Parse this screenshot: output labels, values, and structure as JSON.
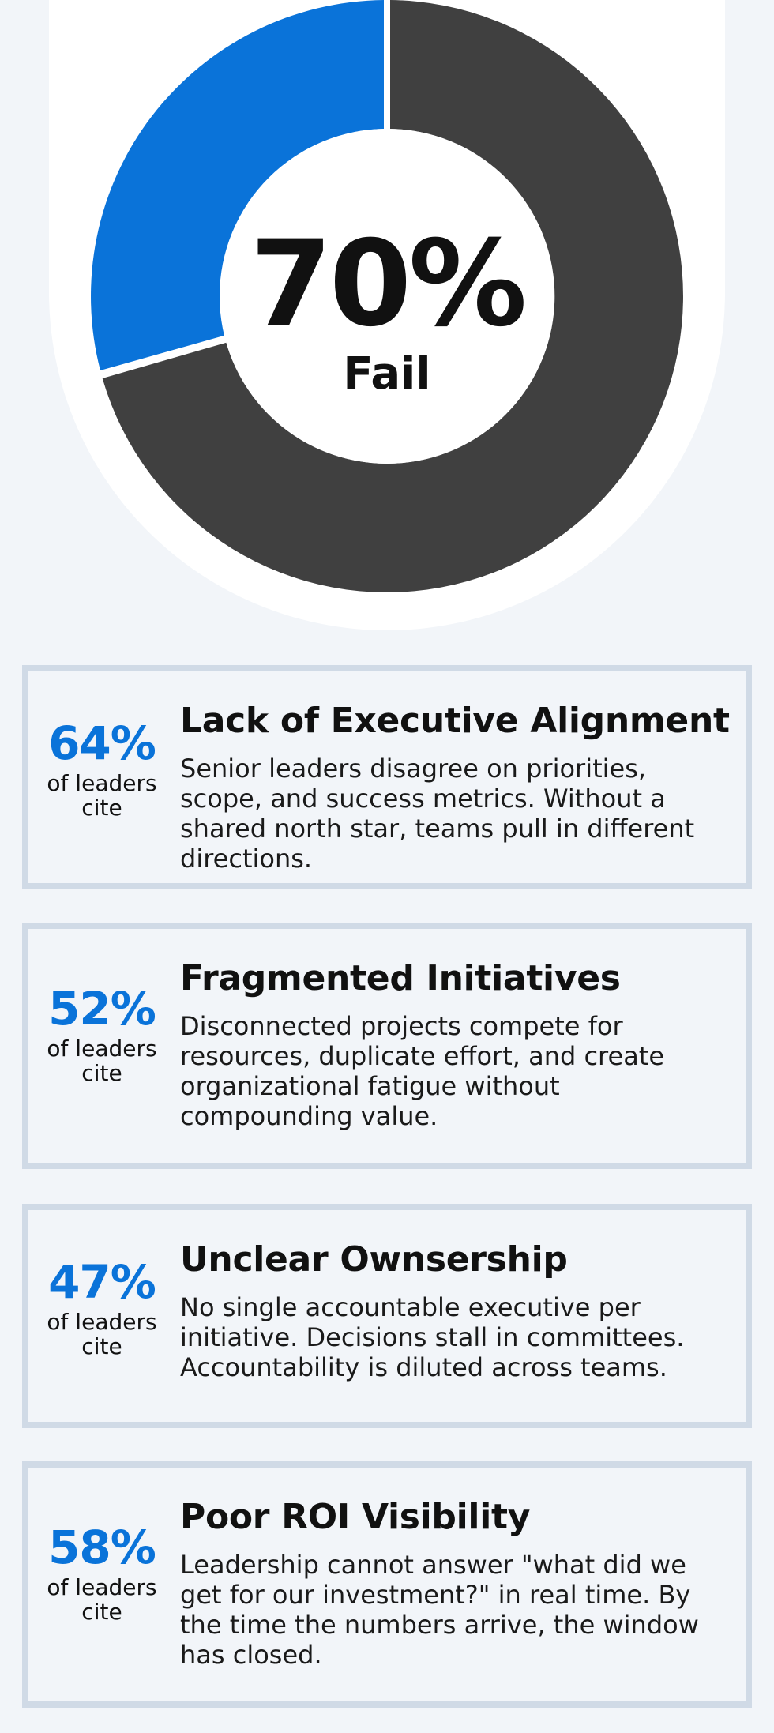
{
  "donut": {
    "big_value": "70%",
    "label": "Fail",
    "colors": {
      "fail": "#404040",
      "success": "#0a73d9"
    }
  },
  "cards": [
    {
      "percent": "64%",
      "cite": "of leaders cite",
      "title": "Lack of Executive Alignment",
      "description": "Senior leaders disagree on priorities, scope, and success metrics. Without a shared north star, teams pull in different directions."
    },
    {
      "percent": "52%",
      "cite": "of leaders cite",
      "title": "Fragmented Initiatives",
      "description": "Disconnected projects compete for resources, duplicate effort, and create organizational fatigue without compounding value."
    },
    {
      "percent": "47%",
      "cite": "of leaders cite",
      "title": "Unclear Ownsership",
      "description": "No single accountable executive per initiative. Decisions stall in committees. Accountability is diluted across teams."
    },
    {
      "percent": "58%",
      "cite": "of leaders cite",
      "title": "Poor ROI Visibility",
      "description": "Leadership cannot answer \"what did we get for our investment?\" in real time. By the time the numbers arrive, the window has closed."
    }
  ]
}
